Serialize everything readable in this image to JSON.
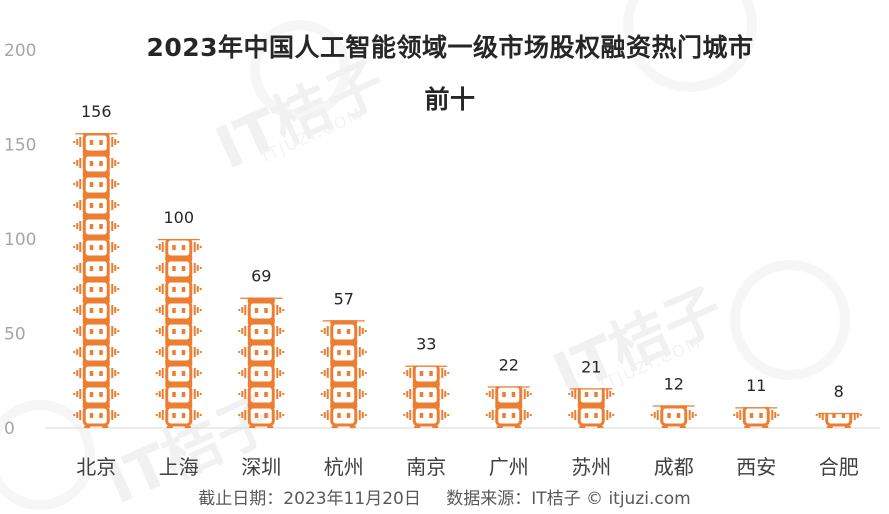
{
  "chart_data": {
    "type": "bar",
    "title_line1": "2023年中国人工智能领域一级市场股权融资热门城市",
    "title_line2": "前十",
    "categories": [
      "北京",
      "上海",
      "深圳",
      "杭州",
      "南京",
      "广州",
      "苏州",
      "成都",
      "西安",
      "合肥"
    ],
    "values": [
      156,
      100,
      69,
      57,
      33,
      22,
      21,
      12,
      11,
      8
    ],
    "ylim": [
      0,
      200
    ],
    "yticks": [
      0,
      50,
      100,
      150,
      200
    ],
    "grid": false,
    "legend": "none",
    "xlabel": "",
    "ylabel": "",
    "bar_icon": "robot-head-icon",
    "bar_color": "#ed7d31"
  },
  "footer": {
    "date_label": "截止日期：2023年11月20日",
    "source_label": "数据来源：IT桔子 © itjuzi.com"
  },
  "watermark": {
    "brand": "IT桔子",
    "domain": "ITJUZI.COM"
  }
}
